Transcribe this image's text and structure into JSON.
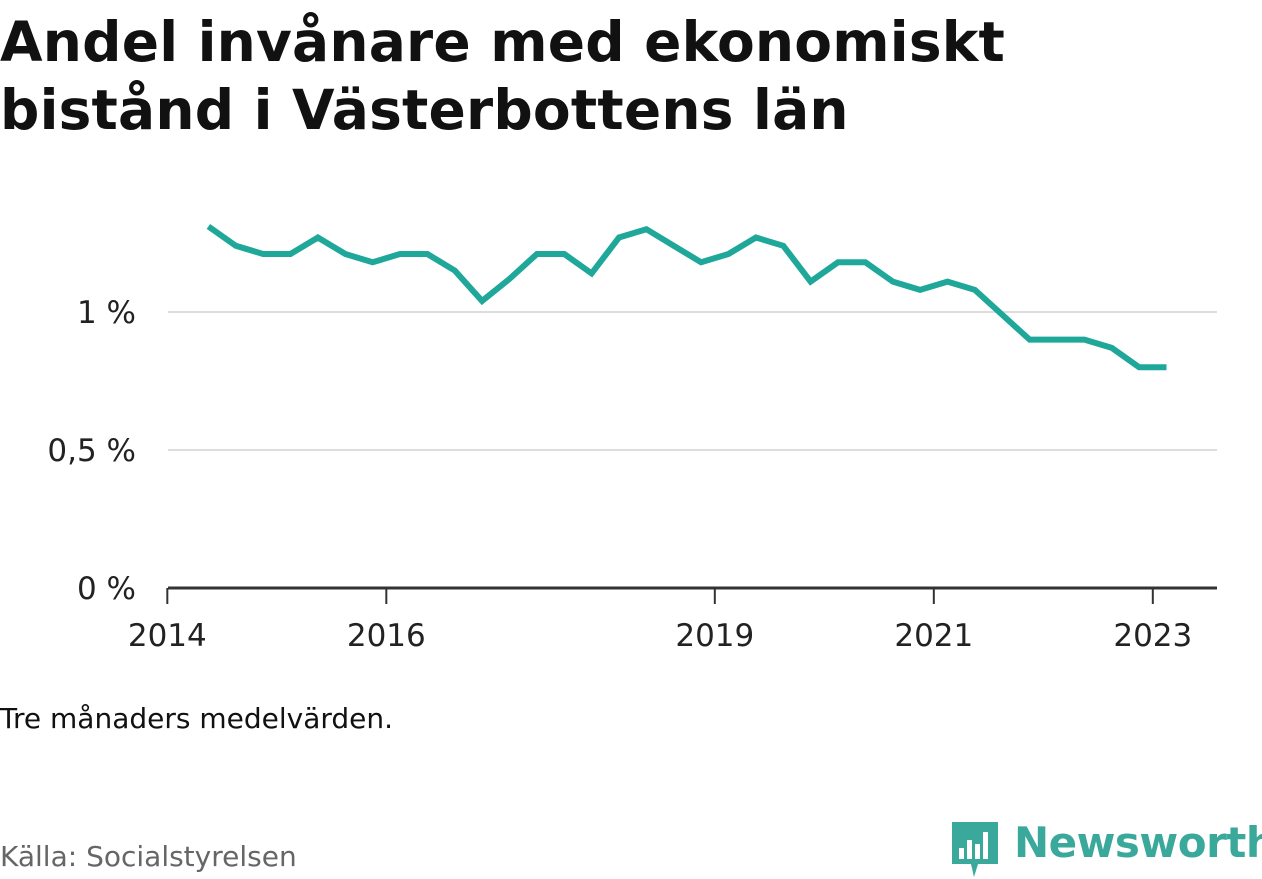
{
  "title": "Andel invånare med ekonomiskt bistånd i Västerbottens län",
  "note": "Tre månaders medelvärden.",
  "source": "Källa: Socialstyrelsen",
  "brand": {
    "name": "Newsworthy",
    "icon": "newsworthy-logo-icon",
    "color": "#3aa89a"
  },
  "colors": {
    "line": "#1fa89a",
    "grid": "#dddddd",
    "axis": "#333333"
  },
  "chart_data": {
    "type": "line",
    "title": "Andel invånare med ekonomiskt bistånd i Västerbottens län",
    "xlabel": "",
    "ylabel": "",
    "x_unit": "quarter",
    "ylim": [
      0,
      1.35
    ],
    "y_ticks": [
      0,
      0.5,
      1
    ],
    "y_tick_labels": [
      "0 %",
      "0,5 %",
      "1 %"
    ],
    "x_ticks": [
      2014,
      2016,
      2019,
      2021,
      2023
    ],
    "x_tick_labels": [
      "2014",
      "2016",
      "2019",
      "2021",
      "2023"
    ],
    "grid": "horizontal",
    "x": [
      "2014-Q2",
      "2014-Q3",
      "2014-Q4",
      "2015-Q1",
      "2015-Q2",
      "2015-Q3",
      "2015-Q4",
      "2016-Q1",
      "2016-Q2",
      "2016-Q3",
      "2016-Q4",
      "2017-Q1",
      "2017-Q2",
      "2017-Q3",
      "2017-Q4",
      "2018-Q1",
      "2018-Q2",
      "2018-Q3",
      "2018-Q4",
      "2019-Q1",
      "2019-Q2",
      "2019-Q3",
      "2019-Q4",
      "2020-Q1",
      "2020-Q2",
      "2020-Q3",
      "2020-Q4",
      "2021-Q1",
      "2021-Q2",
      "2021-Q3",
      "2021-Q4",
      "2022-Q1",
      "2022-Q2",
      "2022-Q3",
      "2022-Q4",
      "2023-Q1"
    ],
    "series": [
      {
        "values": [
          1.31,
          1.24,
          1.21,
          1.21,
          1.27,
          1.21,
          1.18,
          1.21,
          1.21,
          1.15,
          1.04,
          1.12,
          1.21,
          1.21,
          1.14,
          1.27,
          1.3,
          1.24,
          1.18,
          1.21,
          1.27,
          1.24,
          1.11,
          1.18,
          1.18,
          1.11,
          1.08,
          1.11,
          1.08,
          0.99,
          0.9,
          0.9,
          0.9,
          0.87,
          0.8,
          0.8
        ]
      }
    ]
  }
}
